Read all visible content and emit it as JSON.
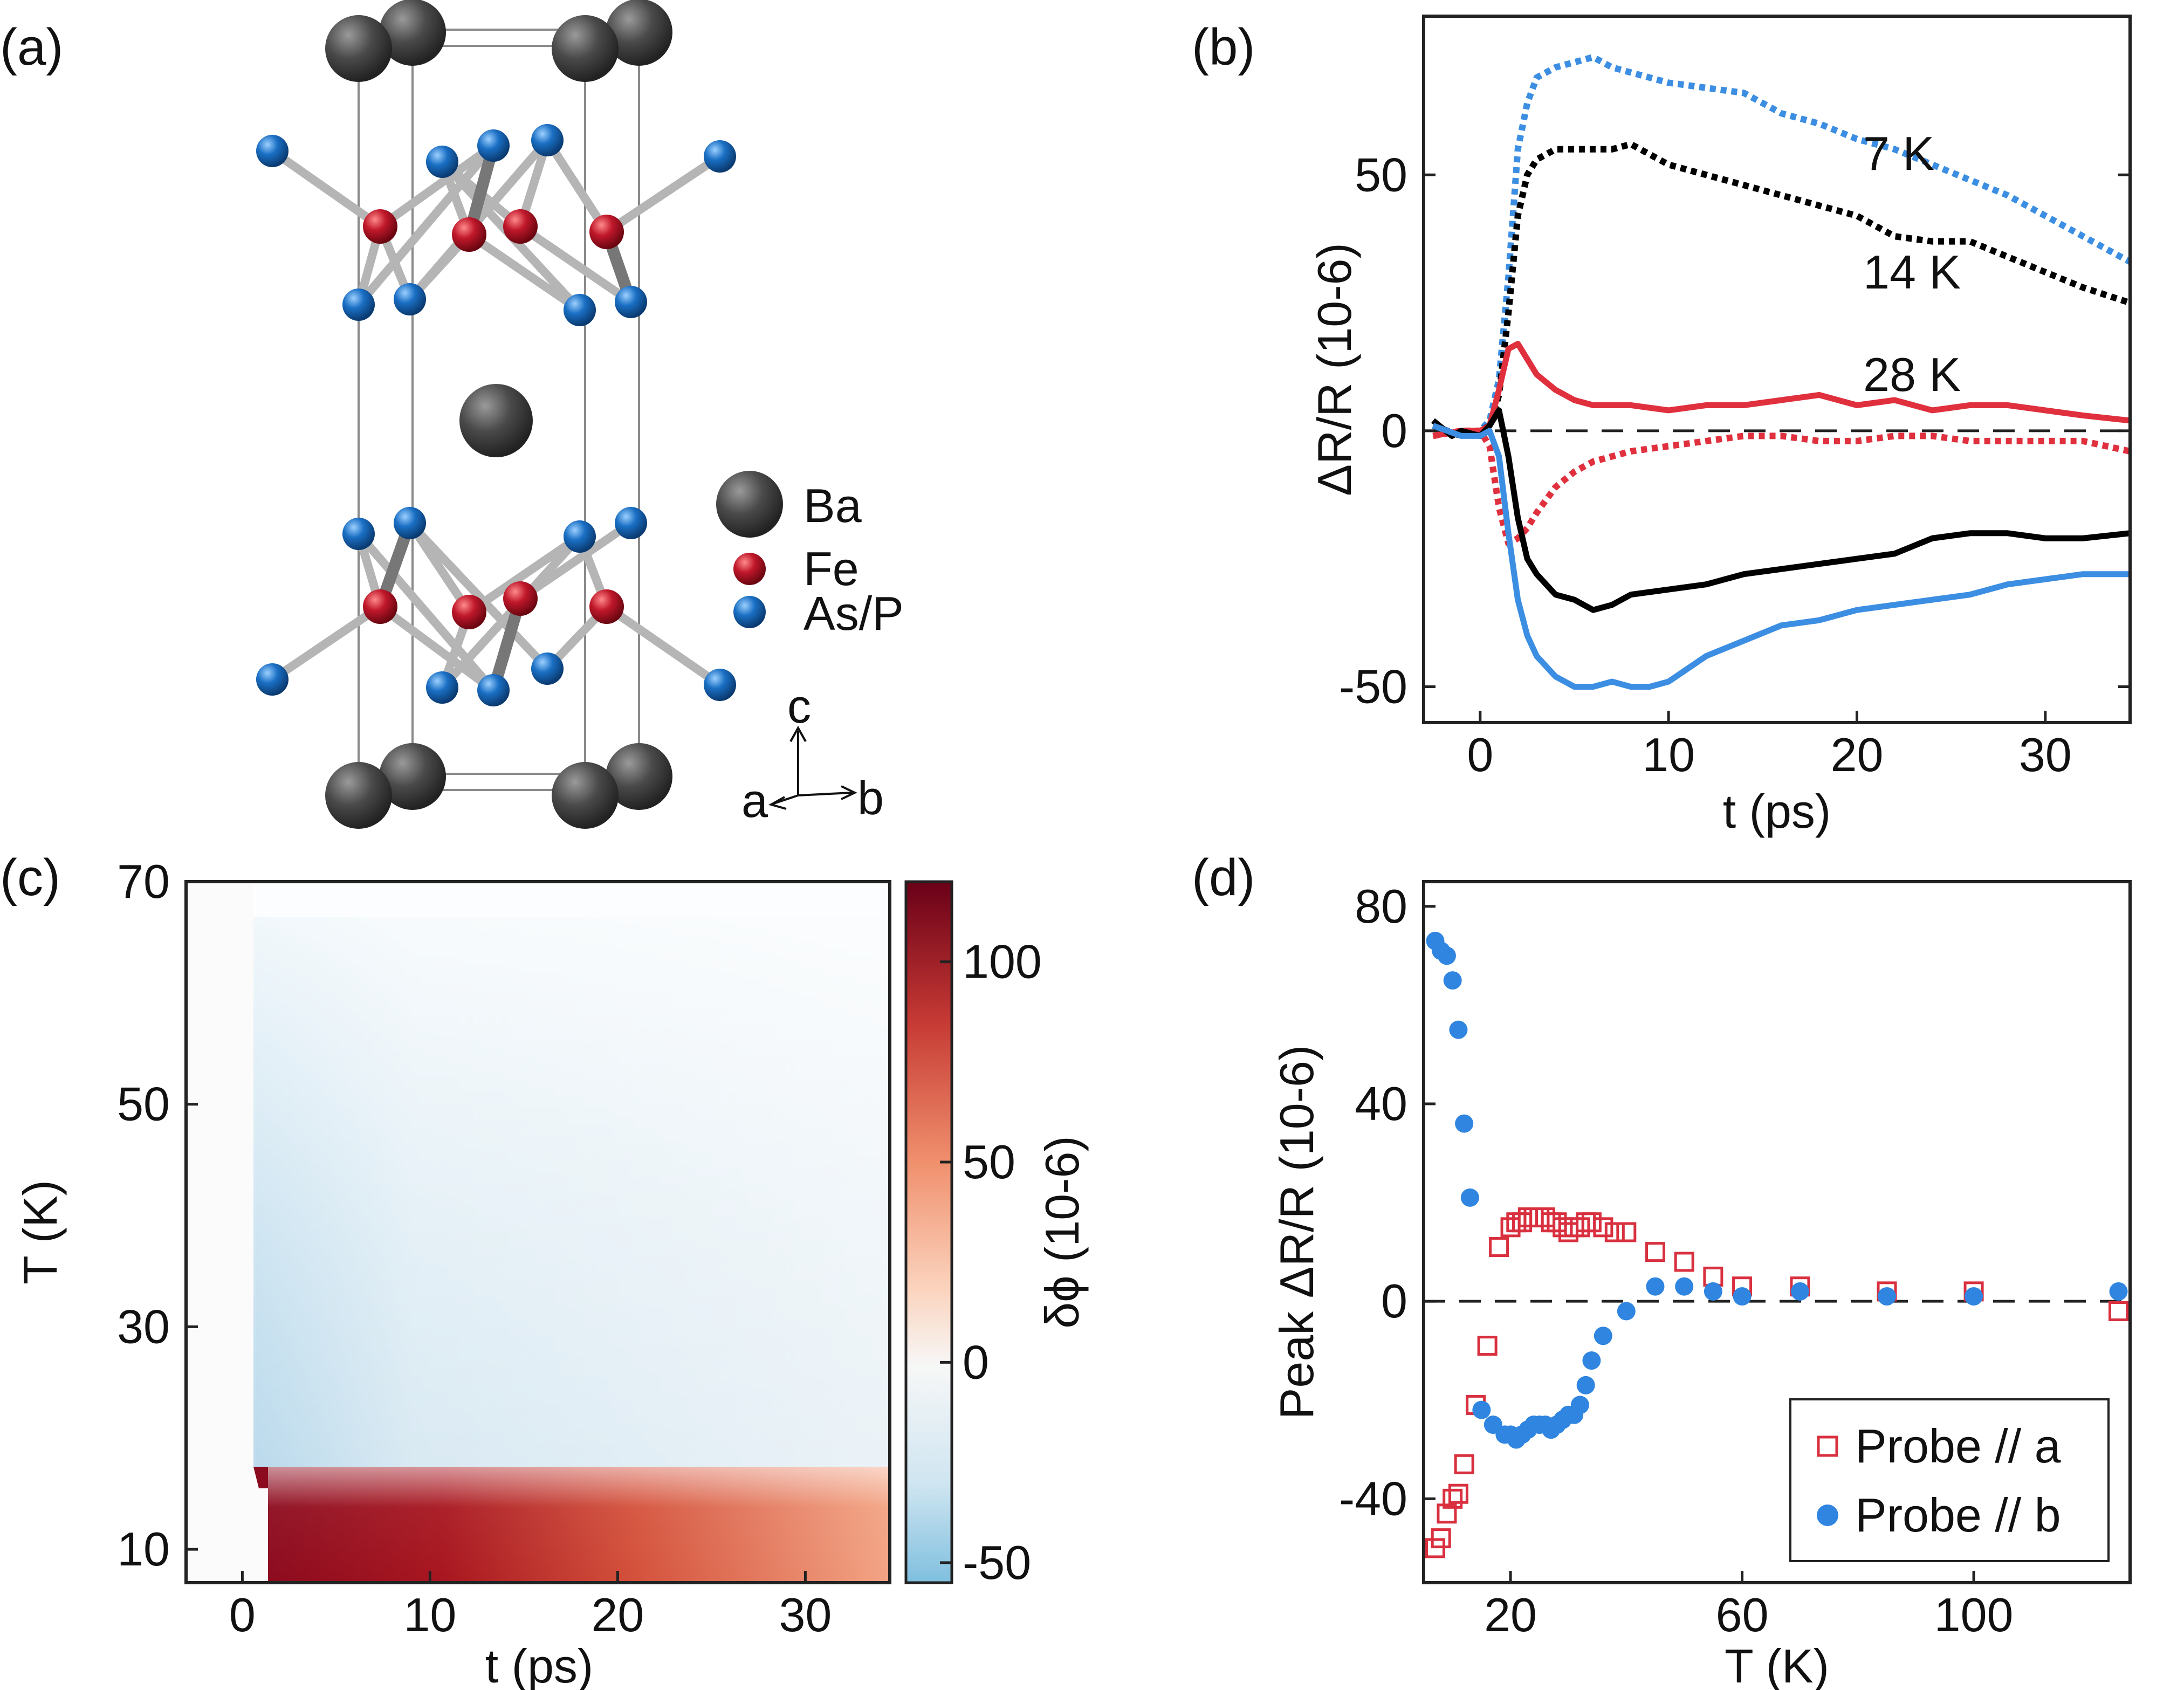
{
  "panels": {
    "a": {
      "label": "(a)"
    },
    "b": {
      "label": "(b)"
    },
    "c": {
      "label": "(c)"
    },
    "d": {
      "label": "(d)"
    }
  },
  "crystal": {
    "legend": [
      {
        "label": "Ba",
        "color": "#3a3a3a"
      },
      {
        "label": "Fe",
        "color": "#c0182b"
      },
      {
        "label": "As/P",
        "color": "#1a6fc4"
      }
    ],
    "axes": {
      "a": "a",
      "b": "b",
      "c": "c"
    }
  },
  "colors": {
    "blue": "#3c8ee2",
    "black": "#000000",
    "red": "#e0303e",
    "square": "#d9303f",
    "circle": "#2f85e0"
  },
  "chart_data": [
    {
      "id": "b",
      "type": "line",
      "xlabel": "t (ps)",
      "ylabel": "ΔR/R (10-6)",
      "xlim": [
        -3,
        34.5
      ],
      "ylim": [
        -57,
        81
      ],
      "xticks": [
        0,
        10,
        20,
        30
      ],
      "yticks": [
        -50,
        0,
        50
      ],
      "annotations": [
        "7 K",
        "14 K",
        "28 K"
      ],
      "series": [
        {
          "name": "7 K dotted",
          "style": "dotted",
          "color": "blue",
          "x": [
            -2.5,
            -1,
            0,
            0.5,
            1,
            1.5,
            2,
            2.5,
            3,
            4,
            5,
            6,
            7,
            8,
            10,
            12,
            14,
            16,
            18,
            20,
            22,
            24,
            26,
            28,
            30,
            32,
            34.5
          ],
          "y": [
            1,
            -1,
            0,
            2,
            10,
            30,
            55,
            64,
            69,
            71,
            72,
            73,
            71,
            70,
            68,
            67,
            66,
            62,
            60,
            57,
            55,
            52,
            49,
            46,
            42,
            38,
            33
          ]
        },
        {
          "name": "14 K dotted",
          "style": "dotted",
          "color": "black",
          "x": [
            -2.5,
            -1,
            0,
            0.5,
            1,
            1.5,
            2,
            2.5,
            3,
            4,
            5,
            6,
            7,
            8,
            10,
            12,
            14,
            16,
            18,
            20,
            22,
            24,
            26,
            28,
            30,
            32,
            34.5
          ],
          "y": [
            1,
            -1,
            0,
            1,
            7,
            23,
            42,
            50,
            53,
            55,
            55,
            55,
            55,
            56,
            52,
            50,
            48,
            46,
            44,
            42,
            38,
            37,
            37,
            34,
            31,
            28,
            25
          ]
        },
        {
          "name": "28 K solid",
          "style": "solid",
          "color": "red",
          "x": [
            -2.5,
            -1,
            0,
            0.5,
            1,
            1.5,
            2,
            2.5,
            3,
            4,
            5,
            6,
            8,
            10,
            12,
            14,
            16,
            18,
            20,
            22,
            24,
            26,
            28,
            30,
            32,
            34.5
          ],
          "y": [
            -1,
            0,
            0,
            1,
            8,
            16,
            17,
            14,
            11,
            8,
            6,
            5,
            5,
            4,
            5,
            5,
            6,
            7,
            5,
            6,
            4,
            5,
            5,
            4,
            3,
            2
          ]
        },
        {
          "name": "28 K dotted",
          "style": "dotted",
          "color": "red",
          "x": [
            -2.5,
            -1,
            0,
            0.5,
            1,
            1.5,
            2,
            2.5,
            3,
            4,
            5,
            6,
            8,
            10,
            12,
            14,
            16,
            18,
            20,
            22,
            24,
            26,
            28,
            30,
            32,
            34.5
          ],
          "y": [
            -1,
            0,
            0,
            -3,
            -15,
            -22,
            -21,
            -19,
            -16,
            -11,
            -8,
            -6,
            -4,
            -3,
            -2,
            -1,
            -1,
            -2,
            -2,
            -1,
            -1,
            -2,
            -2,
            -2,
            -2,
            -4
          ]
        },
        {
          "name": "14 K solid",
          "style": "solid",
          "color": "black",
          "x": [
            -2.5,
            -1.5,
            -1,
            0,
            0.5,
            1,
            1.5,
            2,
            2.5,
            3,
            4,
            5,
            6,
            7,
            8,
            10,
            12,
            14,
            16,
            18,
            20,
            22,
            24,
            26,
            28,
            30,
            32,
            34.5
          ],
          "y": [
            2,
            -1,
            0,
            -1,
            1,
            4,
            -5,
            -17,
            -25,
            -28,
            -32,
            -33,
            -35,
            -34,
            -32,
            -31,
            -30,
            -28,
            -27,
            -26,
            -25,
            -24,
            -21,
            -20,
            -20,
            -21,
            -21,
            -20
          ]
        },
        {
          "name": "7 K solid",
          "style": "solid",
          "color": "blue",
          "x": [
            -2.5,
            -1,
            0,
            0.5,
            1,
            1.5,
            2,
            2.5,
            3,
            4,
            5,
            6,
            7,
            8,
            9,
            10,
            12,
            14,
            16,
            18,
            20,
            22,
            24,
            26,
            28,
            30,
            32,
            34.5
          ],
          "y": [
            1,
            -1,
            -1,
            0,
            -5,
            -20,
            -33,
            -40,
            -44,
            -48,
            -50,
            -50,
            -49,
            -50,
            -50,
            -49,
            -44,
            -41,
            -38,
            -37,
            -35,
            -34,
            -33,
            -32,
            -30,
            -29,
            -28,
            -28
          ]
        }
      ]
    },
    {
      "id": "c",
      "type": "heatmap",
      "xlabel": "t (ps)",
      "ylabel": "T (K)",
      "xlim": [
        -3,
        34.5
      ],
      "ylim": [
        7,
        70
      ],
      "xticks": [
        0,
        10,
        20,
        30
      ],
      "yticks": [
        10,
        30,
        50,
        70
      ],
      "colorbar": {
        "label": "δϕ  (10-6)",
        "min": -55,
        "max": 120,
        "ticks": [
          -50,
          0,
          50,
          100
        ]
      }
    },
    {
      "id": "d",
      "type": "scatter",
      "xlabel": "T (K)",
      "ylabel": "Peak ΔR/R (10-6)",
      "xlim": [
        5,
        127
      ],
      "ylim": [
        -57,
        85
      ],
      "xticks": [
        20,
        60,
        100
      ],
      "yticks": [
        -40,
        0,
        40,
        80
      ],
      "legend": [
        "Probe // a",
        "Probe // b"
      ],
      "series": [
        {
          "name": "Probe // a",
          "marker": "open-square",
          "color": "square",
          "x": [
            7,
            8,
            9,
            10,
            11,
            12,
            14,
            16,
            18,
            20,
            21,
            22,
            23,
            24,
            25,
            26,
            27,
            28,
            29,
            30,
            31,
            32,
            33,
            34,
            36,
            38,
            40,
            45,
            50,
            55,
            60,
            70,
            85,
            100,
            125
          ],
          "y": [
            -50,
            -48,
            -43,
            -40,
            -39,
            -33,
            -21,
            -9,
            11,
            15,
            16,
            16,
            17,
            17,
            17,
            17,
            16,
            16,
            15,
            14,
            15,
            15,
            16,
            16,
            15,
            14,
            14,
            10,
            8,
            5,
            3,
            3,
            2,
            2,
            -2
          ]
        },
        {
          "name": "Probe // b",
          "marker": "filled-circle",
          "color": "circle",
          "x": [
            7,
            8,
            9,
            10,
            11,
            12,
            13,
            15,
            17,
            19,
            20,
            21,
            22,
            23,
            24,
            25,
            26,
            27,
            28,
            29,
            30,
            31,
            32,
            33,
            34,
            36,
            40,
            45,
            50,
            55,
            60,
            70,
            85,
            100,
            125
          ],
          "y": [
            73,
            71,
            70,
            65,
            55,
            36,
            21,
            -22,
            -25,
            -27,
            -27,
            -28,
            -27,
            -26,
            -25,
            -25,
            -25,
            -26,
            -25,
            -24,
            -23,
            -23,
            -21,
            -17,
            -12,
            -7,
            -2,
            3,
            3,
            2,
            1,
            2,
            1,
            1,
            2
          ]
        }
      ]
    }
  ]
}
